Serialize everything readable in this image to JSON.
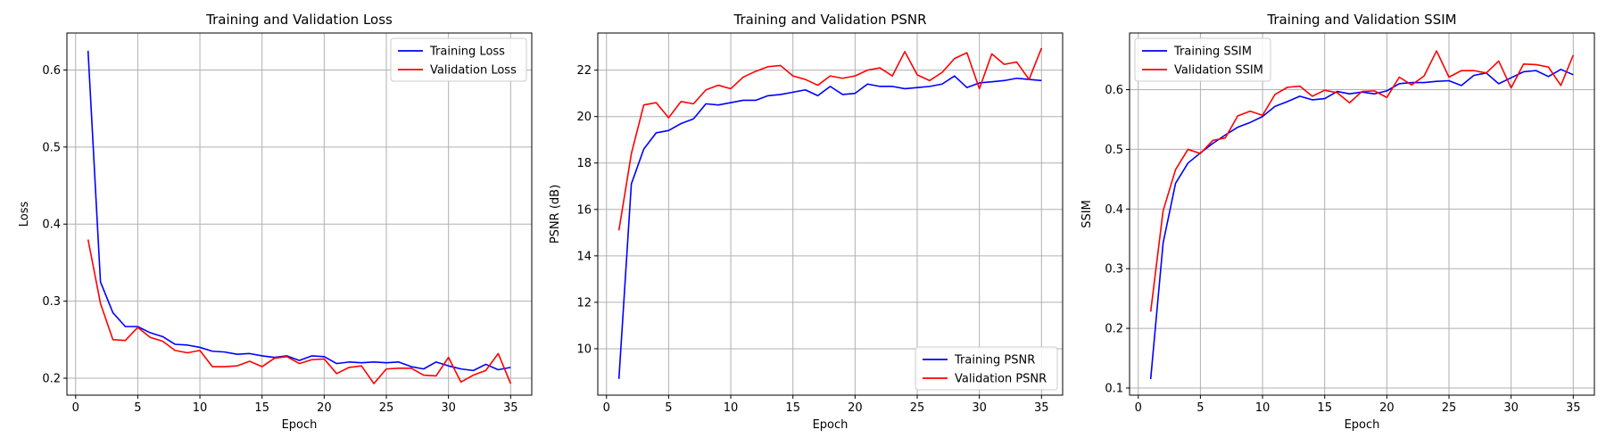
{
  "chart_data": [
    {
      "type": "line",
      "title": "Training and Validation Loss",
      "xlabel": "Epoch",
      "ylabel": "Loss",
      "xlim": [
        -0.7,
        36.7
      ],
      "ylim": [
        0.178,
        0.648
      ],
      "xticks": [
        0,
        5,
        10,
        15,
        20,
        25,
        30,
        35
      ],
      "yticks": [
        0.2,
        0.3,
        0.4,
        0.5,
        0.6
      ],
      "ytick_decimals": 1,
      "grid": true,
      "legend_position": "top-right",
      "x": [
        1,
        2,
        3,
        4,
        5,
        6,
        7,
        8,
        9,
        10,
        11,
        12,
        13,
        14,
        15,
        16,
        17,
        18,
        19,
        20,
        21,
        22,
        23,
        24,
        25,
        26,
        27,
        28,
        29,
        30,
        31,
        32,
        33,
        34,
        35
      ],
      "series": [
        {
          "name": "Training Loss",
          "color": "#0000ff",
          "values": [
            0.625,
            0.325,
            0.285,
            0.267,
            0.267,
            0.259,
            0.254,
            0.244,
            0.243,
            0.24,
            0.235,
            0.234,
            0.231,
            0.232,
            0.229,
            0.227,
            0.229,
            0.223,
            0.229,
            0.228,
            0.219,
            0.221,
            0.22,
            0.221,
            0.22,
            0.221,
            0.215,
            0.212,
            0.221,
            0.216,
            0.212,
            0.21,
            0.218,
            0.211,
            0.214
          ]
        },
        {
          "name": "Validation Loss",
          "color": "#ff0000",
          "values": [
            0.38,
            0.297,
            0.25,
            0.249,
            0.266,
            0.253,
            0.248,
            0.236,
            0.233,
            0.236,
            0.215,
            0.215,
            0.216,
            0.222,
            0.215,
            0.226,
            0.228,
            0.219,
            0.224,
            0.225,
            0.206,
            0.214,
            0.216,
            0.193,
            0.212,
            0.213,
            0.213,
            0.204,
            0.203,
            0.227,
            0.195,
            0.204,
            0.21,
            0.232,
            0.193
          ]
        }
      ]
    },
    {
      "type": "line",
      "title": "Training and Validation PSNR",
      "xlabel": "Epoch",
      "ylabel": "PSNR (dB)",
      "xlim": [
        -0.7,
        36.7
      ],
      "ylim": [
        8.0,
        23.6
      ],
      "xticks": [
        0,
        5,
        10,
        15,
        20,
        25,
        30,
        35
      ],
      "yticks": [
        10,
        12,
        14,
        16,
        18,
        20,
        22
      ],
      "ytick_decimals": 0,
      "grid": true,
      "legend_position": "bottom-right",
      "x": [
        1,
        2,
        3,
        4,
        5,
        6,
        7,
        8,
        9,
        10,
        11,
        12,
        13,
        14,
        15,
        16,
        17,
        18,
        19,
        20,
        21,
        22,
        23,
        24,
        25,
        26,
        27,
        28,
        29,
        30,
        31,
        32,
        33,
        34,
        35
      ],
      "series": [
        {
          "name": "Training PSNR",
          "color": "#0000ff",
          "values": [
            8.7,
            17.1,
            18.6,
            19.3,
            19.4,
            19.7,
            19.9,
            20.55,
            20.5,
            20.6,
            20.7,
            20.7,
            20.9,
            20.95,
            21.05,
            21.15,
            20.9,
            21.3,
            20.95,
            21.0,
            21.4,
            21.3,
            21.3,
            21.2,
            21.25,
            21.3,
            21.4,
            21.75,
            21.25,
            21.45,
            21.5,
            21.55,
            21.65,
            21.6,
            21.55
          ]
        },
        {
          "name": "Validation PSNR",
          "color": "#ff0000",
          "values": [
            15.1,
            18.4,
            20.5,
            20.6,
            19.95,
            20.65,
            20.55,
            21.15,
            21.35,
            21.2,
            21.7,
            21.95,
            22.15,
            22.2,
            21.75,
            21.6,
            21.35,
            21.75,
            21.65,
            21.75,
            22.0,
            22.1,
            21.75,
            22.8,
            21.8,
            21.55,
            21.9,
            22.5,
            22.75,
            21.2,
            22.7,
            22.25,
            22.35,
            21.6,
            22.95
          ]
        }
      ]
    },
    {
      "type": "line",
      "title": "Training and Validation SSIM",
      "xlabel": "Epoch",
      "ylabel": "SSIM",
      "xlim": [
        -0.7,
        36.7
      ],
      "ylim": [
        0.088,
        0.695
      ],
      "xticks": [
        0,
        5,
        10,
        15,
        20,
        25,
        30,
        35
      ],
      "yticks": [
        0.1,
        0.2,
        0.3,
        0.4,
        0.5,
        0.6
      ],
      "ytick_decimals": 1,
      "grid": true,
      "legend_position": "top-left",
      "x": [
        1,
        2,
        3,
        4,
        5,
        6,
        7,
        8,
        9,
        10,
        11,
        12,
        13,
        14,
        15,
        16,
        17,
        18,
        19,
        20,
        21,
        22,
        23,
        24,
        25,
        26,
        27,
        28,
        29,
        30,
        31,
        32,
        33,
        34,
        35
      ],
      "series": [
        {
          "name": "Training SSIM",
          "color": "#0000ff",
          "values": [
            0.115,
            0.343,
            0.443,
            0.477,
            0.494,
            0.51,
            0.524,
            0.537,
            0.545,
            0.555,
            0.572,
            0.58,
            0.589,
            0.583,
            0.585,
            0.597,
            0.593,
            0.596,
            0.593,
            0.598,
            0.61,
            0.612,
            0.612,
            0.614,
            0.615,
            0.607,
            0.624,
            0.628,
            0.61,
            0.62,
            0.63,
            0.632,
            0.622,
            0.634,
            0.625
          ]
        },
        {
          "name": "Validation SSIM",
          "color": "#ff0000",
          "values": [
            0.228,
            0.397,
            0.466,
            0.5,
            0.493,
            0.515,
            0.519,
            0.556,
            0.564,
            0.557,
            0.592,
            0.604,
            0.606,
            0.589,
            0.599,
            0.595,
            0.578,
            0.597,
            0.598,
            0.587,
            0.621,
            0.608,
            0.623,
            0.665,
            0.621,
            0.632,
            0.632,
            0.628,
            0.648,
            0.603,
            0.643,
            0.642,
            0.638,
            0.607,
            0.658
          ]
        }
      ]
    }
  ]
}
